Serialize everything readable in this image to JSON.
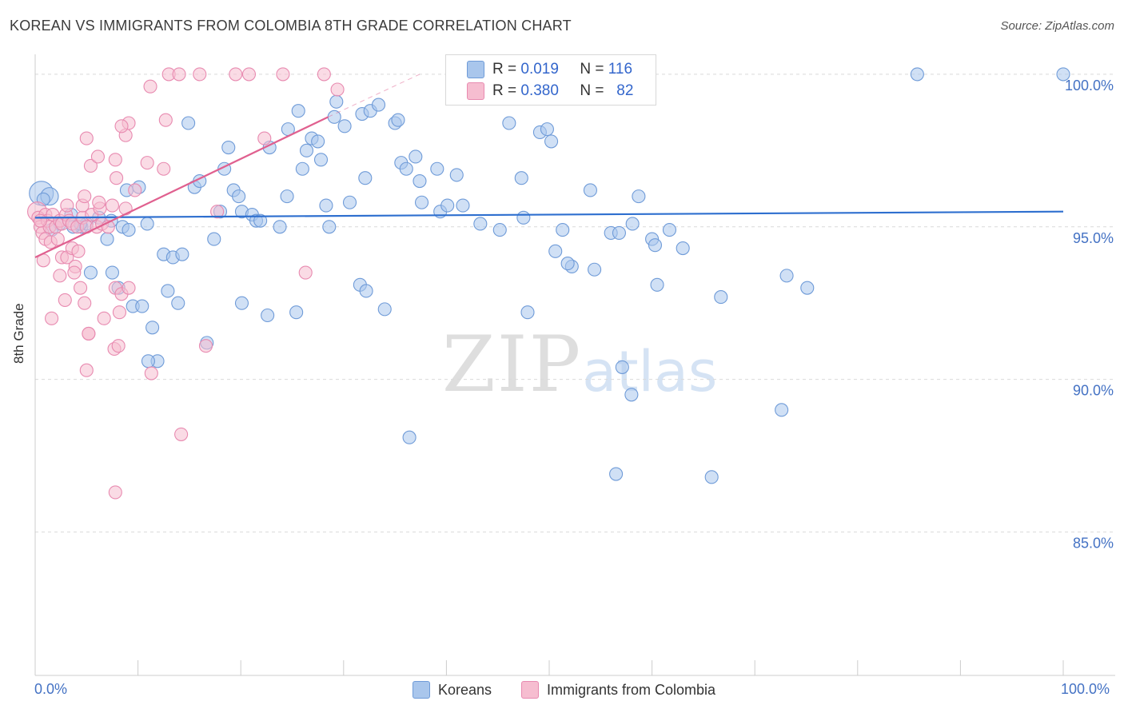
{
  "header": {
    "title": "KOREAN VS IMMIGRANTS FROM COLOMBIA 8TH GRADE CORRELATION CHART",
    "source": "Source: ZipAtlas.com"
  },
  "watermark": {
    "zip": "ZIP",
    "atlas": "atlas"
  },
  "legend": {
    "rows": [
      {
        "r_label": "R =",
        "r_value": "0.019",
        "n_label": "N =",
        "n_value": "116"
      },
      {
        "r_label": "R =",
        "r_value": "0.380",
        "n_label": "N =",
        "n_value": "82"
      }
    ],
    "bottom": [
      "Koreans",
      "Immigrants from Colombia"
    ]
  },
  "colors": {
    "blue_fill": "#a9c6ec",
    "blue_stroke": "#6f9bd8",
    "blue_line": "#2e6fcf",
    "pink_fill": "#f6bdd0",
    "pink_stroke": "#e88ab0",
    "pink_line": "#e0608f",
    "tick_color": "#4472c4",
    "grid": "#d9d9d9"
  },
  "chart_data": {
    "type": "scatter",
    "title": "KOREAN VS IMMIGRANTS FROM COLOMBIA 8TH GRADE CORRELATION CHART",
    "xlabel": "",
    "ylabel": "8th Grade",
    "xlim": [
      0,
      100
    ],
    "ylim": [
      80.3,
      100.6
    ],
    "x_tick_labels": [
      "0.0%",
      "100.0%"
    ],
    "y_ticks": [
      85,
      90,
      95,
      100
    ],
    "y_tick_labels": [
      "85.0%",
      "90.0%",
      "95.0%",
      "100.0%"
    ],
    "grid": "horizontal dashed",
    "legend_position": "top-center",
    "series": [
      {
        "name": "Koreans",
        "R": 0.019,
        "N": 116,
        "trend": {
          "x": [
            0,
            100
          ],
          "y": [
            95.3,
            95.5
          ]
        },
        "points": [
          [
            0.6,
            96.1
          ],
          [
            1.4,
            96.0
          ],
          [
            0.8,
            95.9
          ],
          [
            2.4,
            95.1
          ],
          [
            3.5,
            95.4
          ],
          [
            4.5,
            95.0
          ],
          [
            5.0,
            95.1
          ],
          [
            7.0,
            94.6
          ],
          [
            8.5,
            95.0
          ],
          [
            10.9,
            95.1
          ],
          [
            12.5,
            94.1
          ],
          [
            13.4,
            94.0
          ],
          [
            14.3,
            94.1
          ],
          [
            7.4,
            95.2
          ],
          [
            8.9,
            96.2
          ],
          [
            10.1,
            96.3
          ],
          [
            14.9,
            98.4
          ],
          [
            15.5,
            96.3
          ],
          [
            16.0,
            96.5
          ],
          [
            17.4,
            94.6
          ],
          [
            18.4,
            96.9
          ],
          [
            18.8,
            97.6
          ],
          [
            19.3,
            96.2
          ],
          [
            19.8,
            96.0
          ],
          [
            18.0,
            95.5
          ],
          [
            20.1,
            95.5
          ],
          [
            21.1,
            95.4
          ],
          [
            21.5,
            95.2
          ],
          [
            21.9,
            95.2
          ],
          [
            22.8,
            97.6
          ],
          [
            23.8,
            95.0
          ],
          [
            24.5,
            96.0
          ],
          [
            24.6,
            98.2
          ],
          [
            25.6,
            98.8
          ],
          [
            26.0,
            96.9
          ],
          [
            26.4,
            97.5
          ],
          [
            26.9,
            97.9
          ],
          [
            27.5,
            97.8
          ],
          [
            27.8,
            97.2
          ],
          [
            28.3,
            95.7
          ],
          [
            28.6,
            95.0
          ],
          [
            29.1,
            98.6
          ],
          [
            29.3,
            99.1
          ],
          [
            30.1,
            98.3
          ],
          [
            30.6,
            95.8
          ],
          [
            31.8,
            98.7
          ],
          [
            32.1,
            96.6
          ],
          [
            32.6,
            98.8
          ],
          [
            33.4,
            99.0
          ],
          [
            35.0,
            98.4
          ],
          [
            35.3,
            98.5
          ],
          [
            35.6,
            97.1
          ],
          [
            36.1,
            96.9
          ],
          [
            37.0,
            97.3
          ],
          [
            37.4,
            96.5
          ],
          [
            37.6,
            95.8
          ],
          [
            39.1,
            96.9
          ],
          [
            39.4,
            95.5
          ],
          [
            40.1,
            95.7
          ],
          [
            41.0,
            96.7
          ],
          [
            41.6,
            95.7
          ],
          [
            43.3,
            95.1
          ],
          [
            45.2,
            94.9
          ],
          [
            46.1,
            98.4
          ],
          [
            47.3,
            96.6
          ],
          [
            47.5,
            95.3
          ],
          [
            49.1,
            98.1
          ],
          [
            49.8,
            98.2
          ],
          [
            50.2,
            97.8
          ],
          [
            51.3,
            94.9
          ],
          [
            50.6,
            94.2
          ],
          [
            52.2,
            93.7
          ],
          [
            54.0,
            96.2
          ],
          [
            54.4,
            93.6
          ],
          [
            56.0,
            94.8
          ],
          [
            58.1,
            95.1
          ],
          [
            58.7,
            96.0
          ],
          [
            60.0,
            94.6
          ],
          [
            60.5,
            93.1
          ],
          [
            61.7,
            94.9
          ],
          [
            63.0,
            94.3
          ],
          [
            60.3,
            94.4
          ],
          [
            66.7,
            92.7
          ],
          [
            73.1,
            93.4
          ],
          [
            75.1,
            93.0
          ],
          [
            7.5,
            93.5
          ],
          [
            8.1,
            93.0
          ],
          [
            9.5,
            92.4
          ],
          [
            10.4,
            92.4
          ],
          [
            12.9,
            92.9
          ],
          [
            13.9,
            92.5
          ],
          [
            11.4,
            91.7
          ],
          [
            11.9,
            90.6
          ],
          [
            16.7,
            91.2
          ],
          [
            20.1,
            92.5
          ],
          [
            22.6,
            92.1
          ],
          [
            25.4,
            92.2
          ],
          [
            31.6,
            93.1
          ],
          [
            32.2,
            92.9
          ],
          [
            34.0,
            92.3
          ],
          [
            47.9,
            92.2
          ],
          [
            57.1,
            90.4
          ],
          [
            58.0,
            89.5
          ],
          [
            65.8,
            86.8
          ],
          [
            56.5,
            86.9
          ],
          [
            72.6,
            89.0
          ],
          [
            36.4,
            88.1
          ],
          [
            11.0,
            90.6
          ],
          [
            51.8,
            93.8
          ],
          [
            56.8,
            94.8
          ],
          [
            3.7,
            95.0
          ],
          [
            1.6,
            94.9
          ],
          [
            4.4,
            95.1
          ],
          [
            6.2,
            95.3
          ],
          [
            9.1,
            94.9
          ],
          [
            5.4,
            93.5
          ],
          [
            85.8,
            100.0
          ],
          [
            100.0,
            100.0
          ]
        ]
      },
      {
        "name": "Immigrants from Colombia",
        "R": 0.38,
        "N": 82,
        "trend": {
          "x": [
            0,
            28.5
          ],
          "y": [
            94.0,
            98.6
          ]
        },
        "trend_extension": {
          "x": [
            28.5,
            37.4
          ],
          "y": [
            98.6,
            100.0
          ]
        },
        "points": [
          [
            0.2,
            95.5
          ],
          [
            0.3,
            95.3
          ],
          [
            0.5,
            95.0
          ],
          [
            0.7,
            94.8
          ],
          [
            1.0,
            95.4
          ],
          [
            1.2,
            95.2
          ],
          [
            1.4,
            95.0
          ],
          [
            1.7,
            95.4
          ],
          [
            2.0,
            95.0
          ],
          [
            2.4,
            95.2
          ],
          [
            2.6,
            95.1
          ],
          [
            3.0,
            95.4
          ],
          [
            3.3,
            95.2
          ],
          [
            3.6,
            95.1
          ],
          [
            4.1,
            95.0
          ],
          [
            4.6,
            95.3
          ],
          [
            5.0,
            95.0
          ],
          [
            5.5,
            95.4
          ],
          [
            6.0,
            95.0
          ],
          [
            6.5,
            95.1
          ],
          [
            7.1,
            95.0
          ],
          [
            0.5,
            95.2
          ],
          [
            1.0,
            94.6
          ],
          [
            1.5,
            94.5
          ],
          [
            2.2,
            94.6
          ],
          [
            2.6,
            94.0
          ],
          [
            3.1,
            94.0
          ],
          [
            3.6,
            94.3
          ],
          [
            3.9,
            93.7
          ],
          [
            4.2,
            94.2
          ],
          [
            0.8,
            93.9
          ],
          [
            2.4,
            93.4
          ],
          [
            3.8,
            93.5
          ],
          [
            4.4,
            93.0
          ],
          [
            2.9,
            92.6
          ],
          [
            1.6,
            92.0
          ],
          [
            4.8,
            92.5
          ],
          [
            6.7,
            92.0
          ],
          [
            7.8,
            93.0
          ],
          [
            8.4,
            92.8
          ],
          [
            8.2,
            92.2
          ],
          [
            9.1,
            93.0
          ],
          [
            5.2,
            91.5
          ],
          [
            7.7,
            91.0
          ],
          [
            8.1,
            91.1
          ],
          [
            5.0,
            90.3
          ],
          [
            11.3,
            90.2
          ],
          [
            16.6,
            91.1
          ],
          [
            5.2,
            91.5
          ],
          [
            3.1,
            95.7
          ],
          [
            4.6,
            95.7
          ],
          [
            6.3,
            95.6
          ],
          [
            7.5,
            95.7
          ],
          [
            8.8,
            95.6
          ],
          [
            4.8,
            96.0
          ],
          [
            6.2,
            95.8
          ],
          [
            7.9,
            96.6
          ],
          [
            9.7,
            96.2
          ],
          [
            12.5,
            96.9
          ],
          [
            12.7,
            98.5
          ],
          [
            10.9,
            97.1
          ],
          [
            5.4,
            97.0
          ],
          [
            6.1,
            97.3
          ],
          [
            7.8,
            97.2
          ],
          [
            8.8,
            98.0
          ],
          [
            9.1,
            98.4
          ],
          [
            8.4,
            98.3
          ],
          [
            5.0,
            97.9
          ],
          [
            11.2,
            99.6
          ],
          [
            13.0,
            100.0
          ],
          [
            14.0,
            100.0
          ],
          [
            16.0,
            100.0
          ],
          [
            19.5,
            100.0
          ],
          [
            20.8,
            100.0
          ],
          [
            24.1,
            100.0
          ],
          [
            28.1,
            100.0
          ],
          [
            29.4,
            99.5
          ],
          [
            22.3,
            97.9
          ],
          [
            26.3,
            93.5
          ],
          [
            14.2,
            88.2
          ],
          [
            7.8,
            86.3
          ],
          [
            17.7,
            95.5
          ]
        ]
      }
    ]
  }
}
